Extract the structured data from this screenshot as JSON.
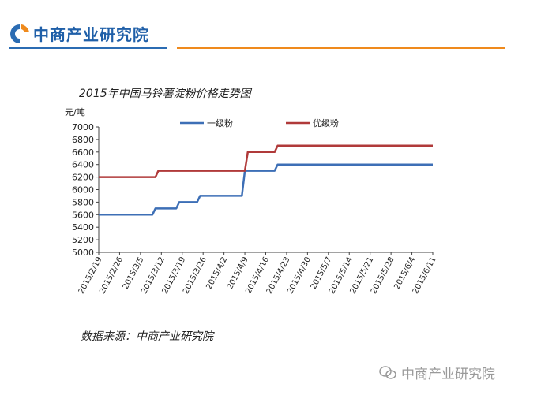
{
  "brand": {
    "name": "中商产业研究院",
    "color": "#1f5fa8",
    "accent": "#ef8a1d"
  },
  "watermark": {
    "text": "中商产业研究院",
    "icon": "wechat-icon"
  },
  "source_text": "数据来源：中商产业研究院",
  "chart_data": {
    "type": "line",
    "title": "2015年中国马铃薯淀粉价格走势图",
    "ylabel": "元/吨",
    "xlabel": "",
    "ylim": [
      5000,
      7000
    ],
    "yticks": [
      5000,
      5200,
      5400,
      5600,
      5800,
      6000,
      6200,
      6400,
      6600,
      6800,
      7000
    ],
    "categories": [
      "2015/2/19",
      "2015/2/26",
      "2015/3/5",
      "2015/3/12",
      "2015/3/19",
      "2015/3/26",
      "2015/4/2",
      "2015/4/9",
      "2015/4/16",
      "2015/4/23",
      "2015/4/30",
      "2015/5/7",
      "2015/5/14",
      "2015/5/21",
      "2015/5/28",
      "2015/6/4",
      "2015/6/11"
    ],
    "grid": false,
    "legend": "top",
    "series": [
      {
        "name": "一级粉",
        "color": "#3d6fb6",
        "points": [
          [
            "2015/2/19",
            5600
          ],
          [
            "2015/3/9",
            5600
          ],
          [
            "2015/3/10",
            5700
          ],
          [
            "2015/3/17",
            5700
          ],
          [
            "2015/3/18",
            5800
          ],
          [
            "2015/3/24",
            5800
          ],
          [
            "2015/3/25",
            5900
          ],
          [
            "2015/4/8",
            5900
          ],
          [
            "2015/4/9",
            6300
          ],
          [
            "2015/4/19",
            6300
          ],
          [
            "2015/4/20",
            6400
          ],
          [
            "2015/6/11",
            6400
          ]
        ]
      },
      {
        "name": "优级粉",
        "color": "#b03a3a",
        "points": [
          [
            "2015/2/19",
            6200
          ],
          [
            "2015/3/10",
            6200
          ],
          [
            "2015/3/11",
            6300
          ],
          [
            "2015/4/9",
            6300
          ],
          [
            "2015/4/10",
            6600
          ],
          [
            "2015/4/19",
            6600
          ],
          [
            "2015/4/20",
            6700
          ],
          [
            "2015/6/11",
            6700
          ]
        ]
      }
    ]
  }
}
